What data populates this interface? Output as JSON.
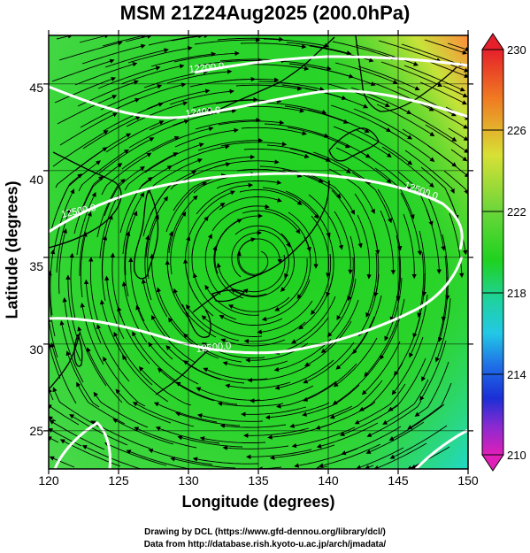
{
  "title": "MSM 21Z24Aug2025 (200.0hPa)",
  "xlabel": "Longitude (degrees)",
  "ylabel": "Latitude  (degrees)",
  "x_ticks": [
    "120",
    "125",
    "130",
    "135",
    "140",
    "145",
    "150"
  ],
  "y_ticks": [
    "25",
    "30",
    "35",
    "40",
    "45"
  ],
  "colorbar": {
    "ticks": [
      "230",
      "226",
      "222",
      "218",
      "214",
      "210"
    ],
    "range": [
      210,
      230
    ]
  },
  "contour_labels": [
    "12200.0",
    "12400.0",
    "12500.0",
    "12500.0",
    "12500.0"
  ],
  "credits": [
    "Drawing by DCL (https://www.gfd-dennou.org/library/dcl/)",
    "Data from http://database.rish.kyoto-u.ac.jp/arch/jmadata/"
  ],
  "map": {
    "lon_range": [
      120,
      150
    ],
    "lat_range": [
      22.8,
      47.8
    ],
    "fill_color": "#29d429",
    "streamline_color": "#000000",
    "contour_color": "#ffffff"
  }
}
